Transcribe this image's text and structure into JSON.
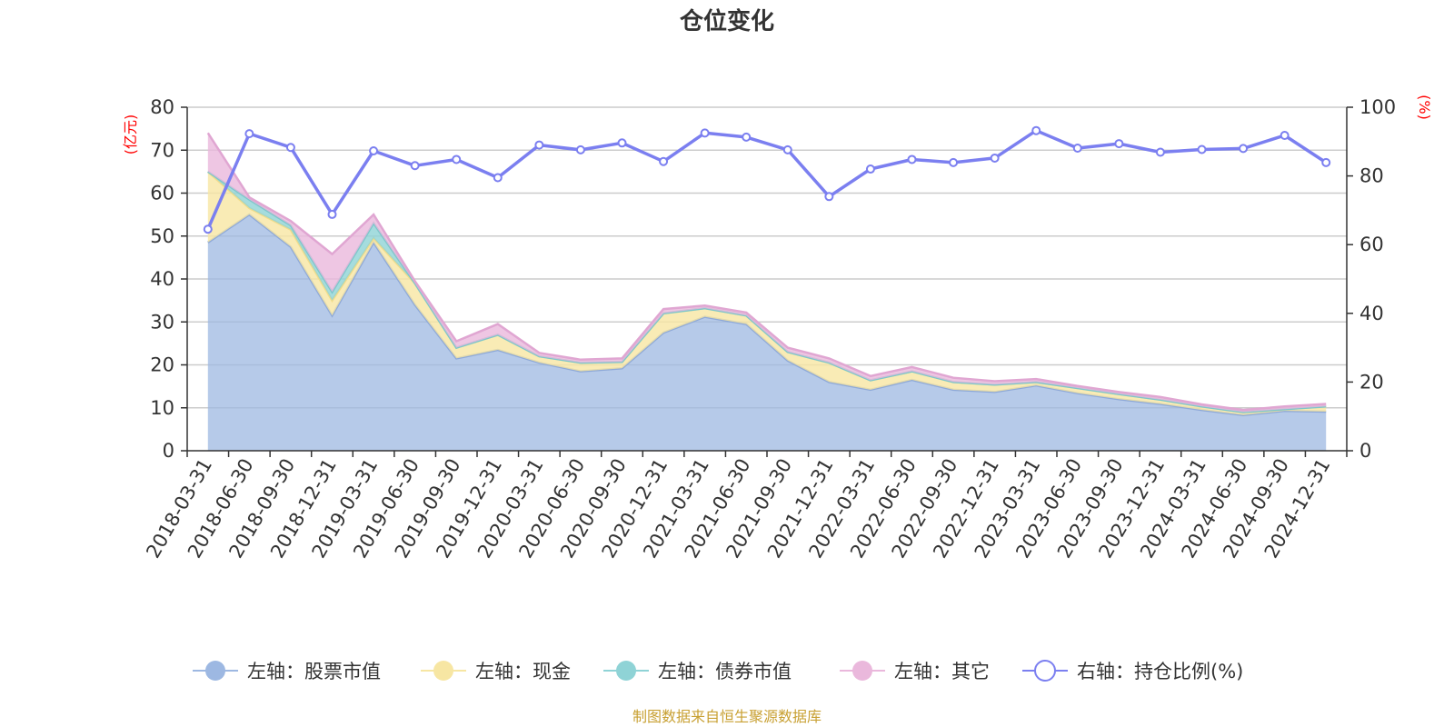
{
  "chart_data": {
    "type": "area",
    "title": "仓位变化",
    "left_unit": "(亿元)",
    "right_unit": "(%)",
    "source": "制图数据来自恒生聚源数据库",
    "left_axis": {
      "range": [
        0,
        80
      ],
      "ticks": [
        "0",
        "10",
        "20",
        "30",
        "40",
        "50",
        "60",
        "70",
        "80"
      ]
    },
    "right_axis": {
      "range": [
        0,
        100
      ],
      "ticks": [
        "0",
        "20",
        "40",
        "60",
        "80",
        "100"
      ]
    },
    "x": [
      "2018-03-31",
      "2018-06-30",
      "2018-09-30",
      "2018-12-31",
      "2019-03-31",
      "2019-06-30",
      "2019-09-30",
      "2019-12-31",
      "2020-03-31",
      "2020-06-30",
      "2020-09-30",
      "2020-12-31",
      "2021-03-31",
      "2021-06-30",
      "2021-09-30",
      "2021-12-31",
      "2022-03-31",
      "2022-06-30",
      "2022-09-30",
      "2022-12-31",
      "2023-03-31",
      "2023-06-30",
      "2023-09-30",
      "2023-12-31",
      "2024-03-31",
      "2024-06-30",
      "2024-09-30",
      "2024-12-31"
    ],
    "grid": true,
    "legend_position": "bottom",
    "series": [
      {
        "name": "左轴：股票市值",
        "axis": "left",
        "stack": true,
        "color": "#9db8e2",
        "values": [
          48.5,
          55.0,
          47.5,
          31.5,
          48.5,
          34.0,
          21.5,
          23.5,
          20.5,
          18.5,
          19.2,
          27.5,
          31.2,
          29.5,
          21.0,
          16.0,
          14.2,
          16.5,
          14.2,
          13.7,
          15.2,
          13.4,
          12.0,
          10.9,
          9.5,
          8.3,
          9.3,
          9.1
        ]
      },
      {
        "name": "左轴：现金",
        "axis": "left",
        "stack": true,
        "color": "#f7e6a3",
        "values": [
          16.5,
          1.5,
          4.0,
          3.5,
          1.0,
          5.0,
          2.5,
          3.5,
          1.5,
          2.0,
          1.5,
          4.5,
          2.0,
          2.0,
          2.0,
          4.5,
          2.2,
          2.0,
          1.8,
          1.7,
          0.8,
          1.2,
          1.2,
          1.0,
          0.8,
          0.7,
          0.4,
          1.2
        ]
      },
      {
        "name": "左轴：债券市值",
        "axis": "left",
        "stack": true,
        "color": "#8fd3d6",
        "values": [
          0,
          2.0,
          1.0,
          2.0,
          3.5,
          0,
          0,
          0,
          0,
          0,
          0,
          0,
          0,
          0,
          0,
          0,
          0,
          0,
          0,
          0,
          0,
          0,
          0,
          0,
          0,
          0,
          0,
          0
        ]
      },
      {
        "name": "左轴：其它",
        "axis": "left",
        "stack": true,
        "color": "#eab8dc",
        "values": [
          9.0,
          0.5,
          1.0,
          8.8,
          2.0,
          0.5,
          1.5,
          2.5,
          0.8,
          0.7,
          0.8,
          1.0,
          0.6,
          0.7,
          1.0,
          1.0,
          1.0,
          1.0,
          1.0,
          0.8,
          0.7,
          0.5,
          0.5,
          0.6,
          0.5,
          0.5,
          0.6,
          0.6
        ]
      },
      {
        "name": "右轴：持仓比例(%)",
        "axis": "right",
        "type": "line",
        "color": "#7b7ff0",
        "values": [
          64.5,
          92.3,
          88.3,
          68.8,
          87.3,
          83.0,
          84.8,
          79.5,
          89.0,
          87.6,
          89.6,
          84.2,
          92.5,
          91.3,
          87.6,
          74.0,
          82.0,
          84.8,
          83.9,
          85.2,
          93.2,
          88.1,
          89.4,
          86.9,
          87.7,
          88.0,
          91.8,
          83.9
        ]
      }
    ]
  }
}
